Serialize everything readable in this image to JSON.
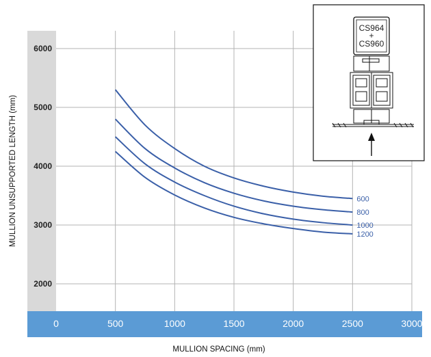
{
  "chart_data": {
    "type": "line",
    "xlabel": "MULLION SPACING (mm)",
    "ylabel": "MULLION UNSUPPORTED LENGTH (mm)",
    "xlim": [
      0,
      3000
    ],
    "ylim": [
      1500,
      6200
    ],
    "x_ticks": [
      "0",
      "500",
      "1000",
      "1500",
      "2000",
      "2500",
      "3000"
    ],
    "y_ticks": [
      "6000",
      "5000",
      "4000",
      "3000",
      "2000"
    ],
    "grid": true,
    "x": [
      500,
      750,
      1000,
      1250,
      1500,
      1750,
      2000,
      2250,
      2500
    ],
    "series": [
      {
        "name": "600",
        "values": [
          5300,
          4700,
          4300,
          4000,
          3800,
          3660,
          3560,
          3490,
          3450
        ]
      },
      {
        "name": "800",
        "values": [
          4800,
          4300,
          3970,
          3720,
          3540,
          3410,
          3320,
          3260,
          3220
        ]
      },
      {
        "name": "1000",
        "values": [
          4500,
          4040,
          3730,
          3500,
          3320,
          3190,
          3100,
          3040,
          3000
        ]
      },
      {
        "name": "1200",
        "values": [
          4250,
          3810,
          3510,
          3290,
          3130,
          3020,
          2940,
          2880,
          2850
        ]
      }
    ],
    "inset": {
      "label_top": "CS964",
      "label_plus": "+",
      "label_bottom": "CS960"
    }
  },
  "colors": {
    "line": "#3a5fa8",
    "x_band": "#5b9bd5",
    "y_band": "#d9d9d9",
    "grid": "#b3b3b3"
  }
}
